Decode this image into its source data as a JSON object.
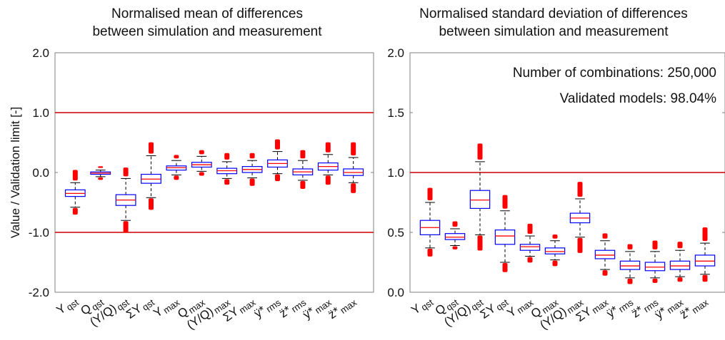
{
  "chart_data": [
    {
      "type": "box",
      "title_lines": [
        "Normalised mean of differences",
        "between simulation and measurement"
      ],
      "ylabel": "Value / Validation limit [-]",
      "ylim": [
        -2.0,
        2.0
      ],
      "yticks": [
        "2.0",
        "1.0",
        "0.0",
        "-1.0",
        "-2.0"
      ],
      "ytick_values": [
        2.0,
        1.0,
        0.0,
        -1.0,
        -2.0
      ],
      "reference_lines": [
        1.0,
        -1.0
      ],
      "categories": [
        {
          "main": "Y",
          "sub": "qst"
        },
        {
          "main": "Q",
          "sub": "qst"
        },
        {
          "main": "(Y/Q)",
          "sub": "qst"
        },
        {
          "main": "ΣY",
          "sub": "qst"
        },
        {
          "main": "Y",
          "sub": "max"
        },
        {
          "main": "Q",
          "sub": "max"
        },
        {
          "main": "(Y/Q)",
          "sub": "max"
        },
        {
          "main": "ΣY",
          "sub": "max"
        },
        {
          "main": "ÿ*",
          "sub": "rms"
        },
        {
          "main": "z̈*",
          "sub": "rms"
        },
        {
          "main": "ÿ*",
          "sub": "max"
        },
        {
          "main": "z̈*",
          "sub": "max"
        }
      ],
      "boxes": [
        {
          "whisker_low": -0.58,
          "q1": -0.4,
          "median": -0.35,
          "q3": -0.29,
          "whisker_high": -0.17,
          "outliers_low": -0.68,
          "outliers_high": 0.02
        },
        {
          "whisker_low": -0.07,
          "q1": -0.03,
          "median": -0.01,
          "q3": 0.01,
          "whisker_high": 0.04,
          "outliers_low": -0.1,
          "outliers_high": 0.08
        },
        {
          "whisker_low": -0.8,
          "q1": -0.55,
          "median": -0.46,
          "q3": -0.37,
          "whisker_high": -0.1,
          "outliers_low": -0.98,
          "outliers_high": 0.06
        },
        {
          "whisker_low": -0.42,
          "q1": -0.18,
          "median": -0.11,
          "q3": -0.03,
          "whisker_high": 0.28,
          "outliers_low": -0.6,
          "outliers_high": 0.48
        },
        {
          "whisker_low": -0.04,
          "q1": 0.04,
          "median": 0.08,
          "q3": 0.11,
          "whisker_high": 0.2,
          "outliers_low": -0.1,
          "outliers_high": 0.27
        },
        {
          "whisker_low": 0.02,
          "q1": 0.09,
          "median": 0.13,
          "q3": 0.17,
          "whisker_high": 0.27,
          "outliers_low": -0.03,
          "outliers_high": 0.35
        },
        {
          "whisker_low": -0.1,
          "q1": -0.02,
          "median": 0.03,
          "q3": 0.07,
          "whisker_high": 0.18,
          "outliers_low": -0.18,
          "outliers_high": 0.3
        },
        {
          "whisker_low": -0.09,
          "q1": 0.0,
          "median": 0.05,
          "q3": 0.1,
          "whisker_high": 0.2,
          "outliers_low": -0.2,
          "outliers_high": 0.3
        },
        {
          "whisker_low": -0.02,
          "q1": 0.09,
          "median": 0.15,
          "q3": 0.21,
          "whisker_high": 0.35,
          "outliers_low": -0.12,
          "outliers_high": 0.53
        },
        {
          "whisker_low": -0.13,
          "q1": -0.04,
          "median": 0.01,
          "q3": 0.06,
          "whisker_high": 0.2,
          "outliers_low": -0.25,
          "outliers_high": 0.35
        },
        {
          "whisker_low": -0.04,
          "q1": 0.04,
          "median": 0.1,
          "q3": 0.16,
          "whisker_high": 0.3,
          "outliers_low": -0.18,
          "outliers_high": 0.48
        },
        {
          "whisker_low": -0.17,
          "q1": -0.05,
          "median": 0.0,
          "q3": 0.06,
          "whisker_high": 0.25,
          "outliers_low": -0.32,
          "outliers_high": 0.48
        }
      ],
      "colors": {
        "box": "#0000ff",
        "median": "#ff0000",
        "outlier": "#ff0000",
        "whisker": "#000000",
        "reference_line": "#cc0000"
      }
    },
    {
      "type": "box",
      "title_lines": [
        "Normalised standard deviation of differences",
        "between simulation and measurement"
      ],
      "ylabel": "",
      "ylim": [
        0.0,
        2.0
      ],
      "yticks": [
        "2.0",
        "1.5",
        "1.0",
        "0.5",
        "0.0"
      ],
      "ytick_values": [
        2.0,
        1.5,
        1.0,
        0.5,
        0.0
      ],
      "reference_lines": [
        1.0
      ],
      "annotations": [
        "Number of combinations: 250,000",
        "Validated models: 98.04%"
      ],
      "categories": [
        {
          "main": "Y",
          "sub": "qst"
        },
        {
          "main": "Q",
          "sub": "qst"
        },
        {
          "main": "(Y/Q)",
          "sub": "qst"
        },
        {
          "main": "ΣY",
          "sub": "qst"
        },
        {
          "main": "Y",
          "sub": "max"
        },
        {
          "main": "Q",
          "sub": "max"
        },
        {
          "main": "(Y/Q)",
          "sub": "max"
        },
        {
          "main": "ΣY",
          "sub": "max"
        },
        {
          "main": "ÿ*",
          "sub": "rms"
        },
        {
          "main": "z̈*",
          "sub": "rms"
        },
        {
          "main": "ÿ*",
          "sub": "max"
        },
        {
          "main": "z̈*",
          "sub": "max"
        }
      ],
      "boxes": [
        {
          "whisker_low": 0.37,
          "q1": 0.48,
          "median": 0.54,
          "q3": 0.6,
          "whisker_high": 0.75,
          "outliers_low": 0.31,
          "outliers_high": 0.86
        },
        {
          "whisker_low": 0.39,
          "q1": 0.44,
          "median": 0.46,
          "q3": 0.49,
          "whisker_high": 0.53,
          "outliers_low": 0.37,
          "outliers_high": 0.58
        },
        {
          "whisker_low": 0.48,
          "q1": 0.7,
          "median": 0.77,
          "q3": 0.85,
          "whisker_high": 1.09,
          "outliers_low": 0.36,
          "outliers_high": 1.23
        },
        {
          "whisker_low": 0.25,
          "q1": 0.4,
          "median": 0.47,
          "q3": 0.52,
          "whisker_high": 0.68,
          "outliers_low": 0.18,
          "outliers_high": 0.8
        },
        {
          "whisker_low": 0.3,
          "q1": 0.35,
          "median": 0.38,
          "q3": 0.4,
          "whisker_high": 0.47,
          "outliers_low": 0.26,
          "outliers_high": 0.56
        },
        {
          "whisker_low": 0.27,
          "q1": 0.32,
          "median": 0.34,
          "q3": 0.37,
          "whisker_high": 0.43,
          "outliers_low": 0.23,
          "outliers_high": 0.47
        },
        {
          "whisker_low": 0.46,
          "q1": 0.58,
          "median": 0.62,
          "q3": 0.66,
          "whisker_high": 0.78,
          "outliers_low": 0.34,
          "outliers_high": 0.91
        },
        {
          "whisker_low": 0.19,
          "q1": 0.28,
          "median": 0.31,
          "q3": 0.35,
          "whisker_high": 0.43,
          "outliers_low": 0.15,
          "outliers_high": 0.48
        },
        {
          "whisker_low": 0.12,
          "q1": 0.19,
          "median": 0.22,
          "q3": 0.26,
          "whisker_high": 0.34,
          "outliers_low": 0.08,
          "outliers_high": 0.39
        },
        {
          "whisker_low": 0.12,
          "q1": 0.18,
          "median": 0.21,
          "q3": 0.25,
          "whisker_high": 0.34,
          "outliers_low": 0.09,
          "outliers_high": 0.42
        },
        {
          "whisker_low": 0.13,
          "q1": 0.19,
          "median": 0.22,
          "q3": 0.26,
          "whisker_high": 0.35,
          "outliers_low": 0.1,
          "outliers_high": 0.41
        },
        {
          "whisker_low": 0.15,
          "q1": 0.22,
          "median": 0.26,
          "q3": 0.31,
          "whisker_high": 0.41,
          "outliers_low": 0.1,
          "outliers_high": 0.53
        }
      ],
      "colors": {
        "box": "#0000ff",
        "median": "#ff0000",
        "outlier": "#ff0000",
        "whisker": "#000000",
        "reference_line": "#cc0000"
      }
    }
  ]
}
